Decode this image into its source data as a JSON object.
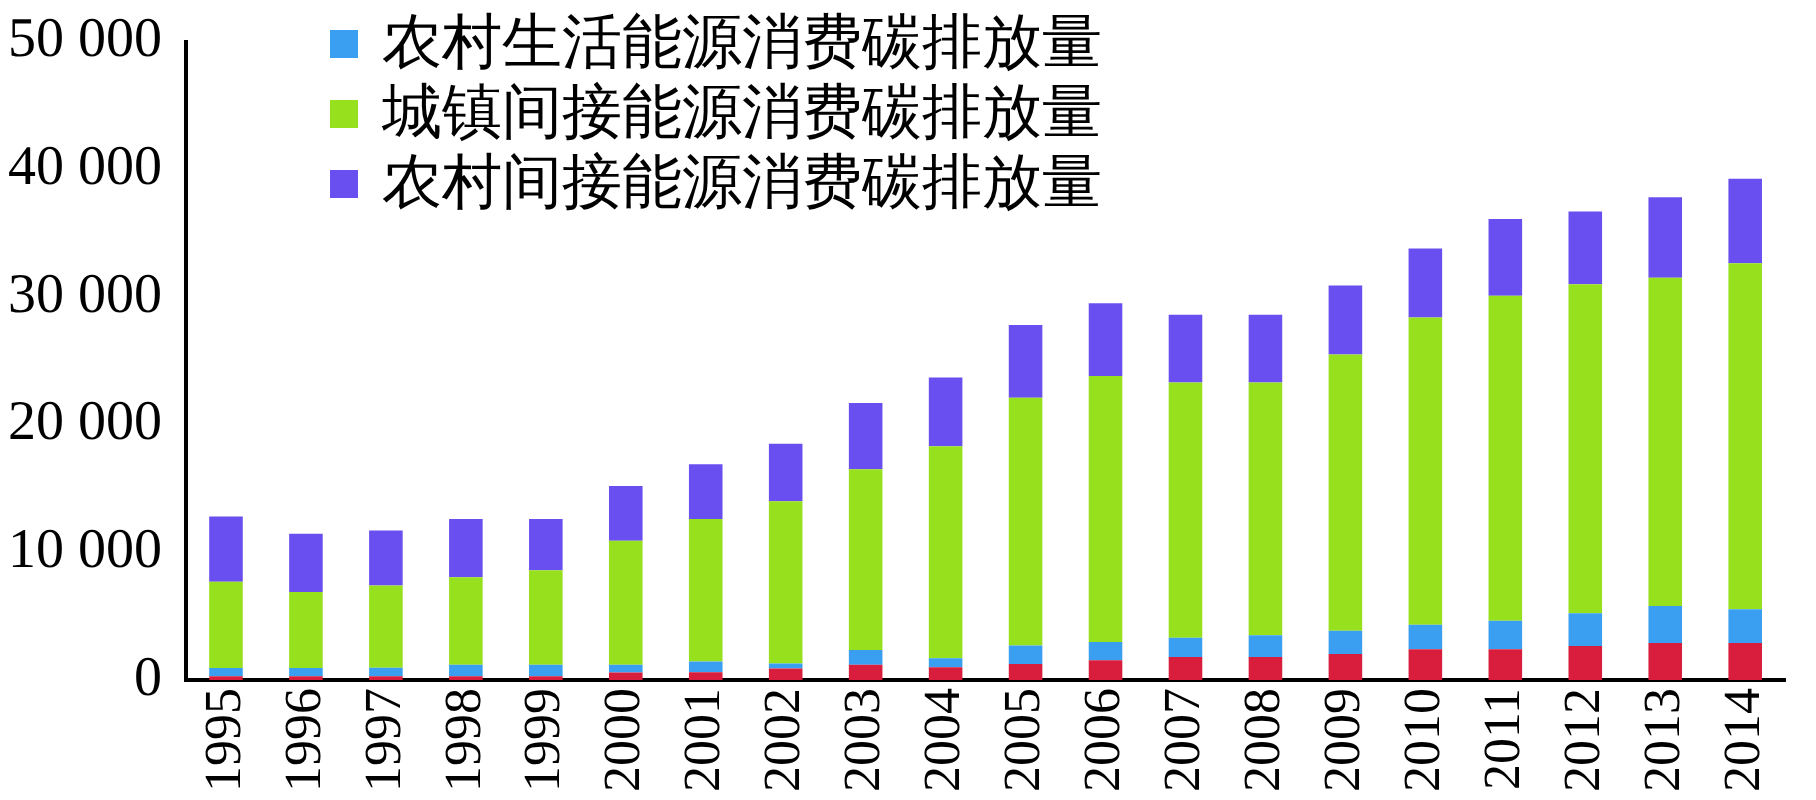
{
  "chart_data": {
    "type": "bar",
    "stacked": true,
    "categories": [
      "1995",
      "1996",
      "1997",
      "1998",
      "1999",
      "2000",
      "2001",
      "2002",
      "2003",
      "2004",
      "2005",
      "2006",
      "2007",
      "2008",
      "2009",
      "2010",
      "2011",
      "2012",
      "2013",
      "2014"
    ],
    "series": [
      {
        "color": "#d81e3c",
        "values": [
          300,
          300,
          300,
          300,
          300,
          580,
          600,
          900,
          1200,
          1000,
          1250,
          1550,
          1800,
          1800,
          2040,
          2400,
          2400,
          2670,
          2900,
          2900
        ]
      },
      {
        "name": "农村生活能源消费碳排放量",
        "color": "#3a9ff0",
        "values": [
          640,
          640,
          650,
          900,
          900,
          620,
          850,
          400,
          1150,
          700,
          1450,
          1430,
          1500,
          1700,
          1820,
          1930,
          2250,
          2560,
          2900,
          2640
        ]
      },
      {
        "name": "城镇间接能源消费碳排放量",
        "color": "#96e01e",
        "values": [
          6760,
          5960,
          6450,
          6850,
          7400,
          9700,
          11150,
          12700,
          14150,
          16600,
          19400,
          20820,
          20000,
          19800,
          21640,
          24070,
          25450,
          25770,
          25700,
          27110
        ]
      },
      {
        "name": "农村间接能源消费碳排放量",
        "color": "#6a4ff0",
        "values": [
          5100,
          4560,
          4300,
          4550,
          4000,
          4300,
          4300,
          4500,
          5200,
          5400,
          5700,
          5700,
          5300,
          5300,
          5400,
          5400,
          6000,
          5700,
          6300,
          6600
        ]
      }
    ],
    "ylim": [
      0,
      50000
    ],
    "yticks": [
      {
        "value": 0,
        "label": "0"
      },
      {
        "value": 10000,
        "label": "10 000"
      },
      {
        "value": 20000,
        "label": "20 000"
      },
      {
        "value": 30000,
        "label": "30 000"
      },
      {
        "value": 40000,
        "label": "40 000"
      },
      {
        "value": 50000,
        "label": "50 000"
      }
    ],
    "grid": false,
    "legend": "top left"
  }
}
